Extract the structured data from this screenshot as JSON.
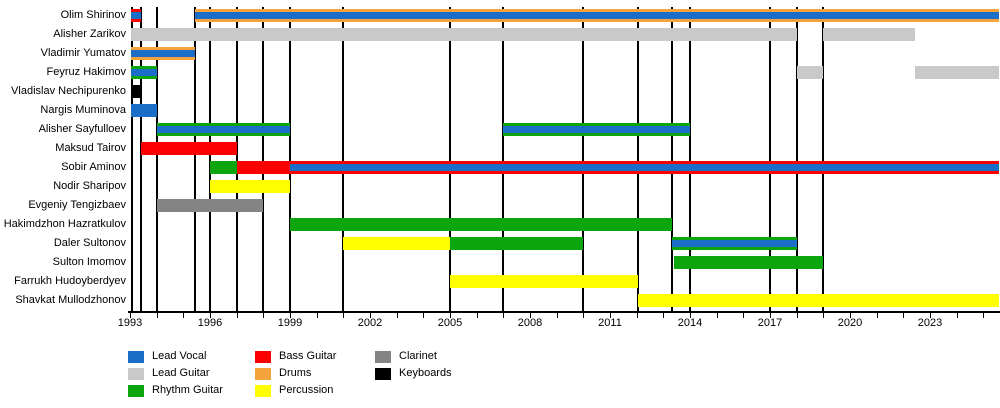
{
  "chart_data": {
    "type": "bar",
    "subtype": "band-member-timeline-gantt",
    "title": "",
    "xlabel": "",
    "ylabel": "",
    "x_axis": {
      "min_year": 1993,
      "max_year": 2025.6,
      "major_tick_labels": [
        1993,
        1996,
        1999,
        2002,
        2005,
        2008,
        2011,
        2014,
        2017,
        2020,
        2023
      ],
      "minor_tick_every_years": 1,
      "minor_tick_first": 1993,
      "minor_tick_last": 2025
    },
    "role_colors": {
      "lead_vocal": "#1b6ec8",
      "lead_guitar": "#c9c9c9",
      "rhythm_guitar": "#0da50d",
      "bass_guitar": "#fb0000",
      "drums": "#f4a33d",
      "percussion": "#ffff00",
      "clarinet": "#848484",
      "keyboards": "#000000"
    },
    "members": [
      {
        "name": "Olim Shirinov",
        "periods": [
          {
            "from": 1993.04,
            "to": 1993.42,
            "role": "bass_guitar",
            "second_role": "lead_vocal"
          },
          {
            "from": 1995.45,
            "to": 2025.6,
            "role": "drums",
            "second_role": "lead_vocal"
          }
        ]
      },
      {
        "name": "Alisher Zarikov",
        "periods": [
          {
            "from": 1993.04,
            "to": 2018.0,
            "role": "lead_guitar"
          },
          {
            "from": 2019.0,
            "to": 2022.45,
            "role": "lead_guitar"
          }
        ]
      },
      {
        "name": "Vladimir Yumatov",
        "periods": [
          {
            "from": 1993.04,
            "to": 1995.45,
            "role": "drums",
            "second_role": "lead_vocal"
          }
        ]
      },
      {
        "name": "Feyruz Hakimov",
        "periods": [
          {
            "from": 1993.04,
            "to": 1994.0,
            "role": "rhythm_guitar",
            "second_role": "lead_vocal"
          },
          {
            "from": 2018.0,
            "to": 2019.0,
            "role": "lead_guitar"
          },
          {
            "from": 2022.45,
            "to": 2025.6,
            "role": "lead_guitar"
          }
        ]
      },
      {
        "name": "Vladislav Nechipurenko",
        "periods": [
          {
            "from": 1993.04,
            "to": 1993.42,
            "role": "keyboards"
          }
        ]
      },
      {
        "name": "Nargis Muminova",
        "periods": [
          {
            "from": 1993.04,
            "to": 1994.0,
            "role": "lead_vocal"
          }
        ]
      },
      {
        "name": "Alisher Sayfulloev",
        "periods": [
          {
            "from": 1994.0,
            "to": 1999.0,
            "role": "rhythm_guitar",
            "second_role": "lead_vocal"
          },
          {
            "from": 2007.0,
            "to": 2014.0,
            "role": "rhythm_guitar",
            "second_role": "lead_vocal"
          }
        ]
      },
      {
        "name": "Maksud Tairov",
        "periods": [
          {
            "from": 1993.42,
            "to": 1997.0,
            "role": "bass_guitar"
          }
        ]
      },
      {
        "name": "Sobir Aminov",
        "periods": [
          {
            "from": 1996.0,
            "to": 1997.0,
            "role": "rhythm_guitar"
          },
          {
            "from": 1997.0,
            "to": 1999.0,
            "role": "bass_guitar"
          },
          {
            "from": 1999.0,
            "to": 2025.6,
            "role": "bass_guitar",
            "second_role": "lead_vocal"
          }
        ]
      },
      {
        "name": "Nodir Sharipov",
        "periods": [
          {
            "from": 1996.0,
            "to": 1999.0,
            "role": "percussion"
          }
        ]
      },
      {
        "name": "Evgeniy Tengizbaev",
        "periods": [
          {
            "from": 1994.0,
            "to": 1998.0,
            "role": "clarinet"
          }
        ]
      },
      {
        "name": "Hakimdzhon Hazratkulov",
        "periods": [
          {
            "from": 1999.0,
            "to": 2013.33,
            "role": "rhythm_guitar"
          }
        ]
      },
      {
        "name": "Daler Sultonov",
        "periods": [
          {
            "from": 2001.0,
            "to": 2005.0,
            "role": "percussion"
          },
          {
            "from": 2005.0,
            "to": 2010.0,
            "role": "rhythm_guitar"
          },
          {
            "from": 2013.33,
            "to": 2018.0,
            "role": "rhythm_guitar",
            "second_role": "lead_vocal"
          }
        ]
      },
      {
        "name": "Sulton Imomov",
        "periods": [
          {
            "from": 2013.4,
            "to": 2019.0,
            "role": "rhythm_guitar"
          }
        ]
      },
      {
        "name": "Farrukh Hudoyberdyev",
        "periods": [
          {
            "from": 2005.0,
            "to": 2012.05,
            "role": "percussion"
          }
        ]
      },
      {
        "name": "Shavkat Mullodzhonov",
        "periods": [
          {
            "from": 2012.05,
            "to": 2025.6,
            "role": "percussion"
          }
        ]
      }
    ],
    "event_lines_years": [
      1993.08,
      1993.42,
      1994,
      1995.45,
      1996,
      1997,
      1998,
      1999,
      2001,
      2005,
      2007,
      2010,
      2012.05,
      2013.33,
      2014,
      2017,
      2018,
      2019
    ],
    "legend_columns": [
      [
        {
          "label": "Lead Vocal",
          "role": "lead_vocal"
        },
        {
          "label": "Lead Guitar",
          "role": "lead_guitar"
        },
        {
          "label": "Rhythm Guitar",
          "role": "rhythm_guitar"
        }
      ],
      [
        {
          "label": "Bass Guitar",
          "role": "bass_guitar"
        },
        {
          "label": "Drums",
          "role": "drums"
        },
        {
          "label": "Percussion",
          "role": "percussion"
        }
      ],
      [
        {
          "label": "Clarinet",
          "role": "clarinet"
        },
        {
          "label": "Keyboards",
          "role": "keyboards"
        }
      ]
    ]
  }
}
